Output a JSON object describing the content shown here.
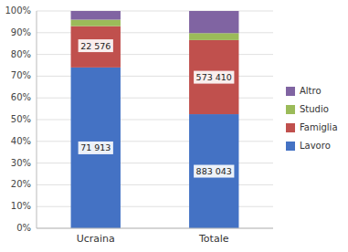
{
  "chart_data": {
    "type": "bar",
    "stacked": true,
    "categories": [
      "Ucraina",
      "Totale"
    ],
    "series": [
      {
        "name": "Lavoro",
        "color": "#4472C4",
        "values": [
          74.0,
          52.5
        ]
      },
      {
        "name": "Famiglia",
        "color": "#C0504D",
        "values": [
          19.0,
          34.1
        ]
      },
      {
        "name": "Studio",
        "color": "#9BBB59",
        "values": [
          3.0,
          3.2
        ]
      },
      {
        "name": "Altro",
        "color": "#8064A2",
        "values": [
          4.0,
          10.2
        ]
      }
    ],
    "annotations": [
      {
        "text": "71 913",
        "x": "Ucraina",
        "y": 37.0
      },
      {
        "text": "22 576",
        "x": "Ucraina",
        "y": 84.0
      },
      {
        "text": "883 043",
        "x": "Totale",
        "y": 26.25
      },
      {
        "text": "573 410",
        "x": "Totale",
        "y": 69.5
      }
    ],
    "ylim": [
      0,
      100
    ],
    "yticks": [
      {
        "value": 0,
        "label": "0%"
      },
      {
        "value": 10,
        "label": "10%"
      },
      {
        "value": 20,
        "label": "20%"
      },
      {
        "value": 30,
        "label": "30%"
      },
      {
        "value": 40,
        "label": "40%"
      },
      {
        "value": 50,
        "label": "50%"
      },
      {
        "value": 60,
        "label": "60%"
      },
      {
        "value": 70,
        "label": "70%"
      },
      {
        "value": 80,
        "label": "80%"
      },
      {
        "value": 90,
        "label": "90%"
      },
      {
        "value": 100,
        "label": "100%"
      }
    ],
    "grid": true,
    "legend": "right"
  }
}
